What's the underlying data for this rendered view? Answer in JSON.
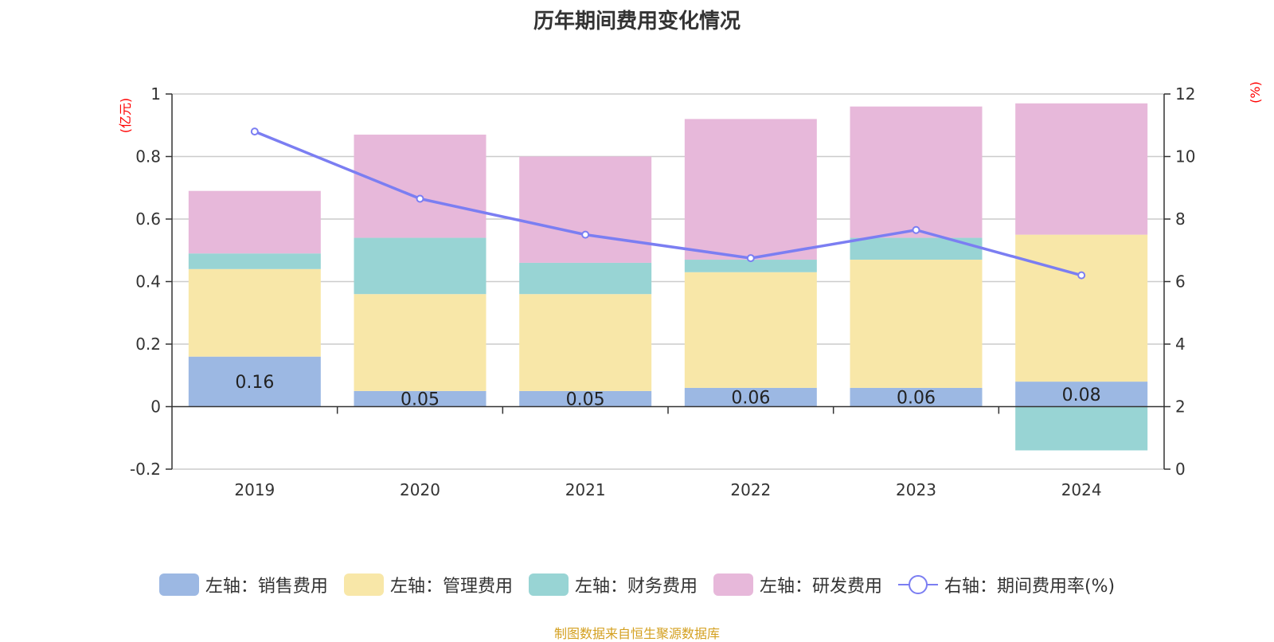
{
  "title": "历年期间费用变化情况",
  "left_unit": "(亿元)",
  "right_unit": "(%)",
  "source": "制图数据来自恒生聚源数据库",
  "colors": {
    "sales": "#9cb8e3",
    "admin": "#f8e7a8",
    "finance": "#98d4d4",
    "rnd": "#e7b8da",
    "rate": "#7b7ef2"
  },
  "chart_data": {
    "type": "bar",
    "stacked": true,
    "categories": [
      "2019",
      "2020",
      "2021",
      "2022",
      "2023",
      "2024"
    ],
    "series": [
      {
        "key": "sales",
        "name": "左轴：销售费用",
        "axis": "left",
        "values": [
          0.16,
          0.05,
          0.05,
          0.06,
          0.06,
          0.08
        ]
      },
      {
        "key": "admin",
        "name": "左轴：管理费用",
        "axis": "left",
        "values": [
          0.28,
          0.31,
          0.31,
          0.37,
          0.41,
          0.47
        ]
      },
      {
        "key": "finance",
        "name": "左轴：财务费用",
        "axis": "left",
        "values": [
          0.05,
          0.18,
          0.1,
          0.04,
          0.07,
          -0.14
        ]
      },
      {
        "key": "rnd",
        "name": "左轴：研发费用",
        "axis": "left",
        "values": [
          0.2,
          0.33,
          0.34,
          0.45,
          0.42,
          0.42
        ]
      },
      {
        "key": "rate",
        "name": "右轴：期间费用率(%)",
        "axis": "right",
        "type": "line",
        "values": [
          10.8,
          8.65,
          7.5,
          6.75,
          7.65,
          6.2
        ]
      }
    ],
    "data_labels": [
      "0.16",
      "0.05",
      "0.05",
      "0.06",
      "0.06",
      "0.08"
    ],
    "left_axis": {
      "min": -0.2,
      "max": 1,
      "ticks": [
        "-0.2",
        "0",
        "0.2",
        "0.4",
        "0.6",
        "0.8",
        "1"
      ]
    },
    "right_axis": {
      "min": 0,
      "max": 12,
      "ticks": [
        "0",
        "2",
        "4",
        "6",
        "8",
        "10",
        "12"
      ]
    },
    "grid": true,
    "legend_position": "bottom"
  }
}
